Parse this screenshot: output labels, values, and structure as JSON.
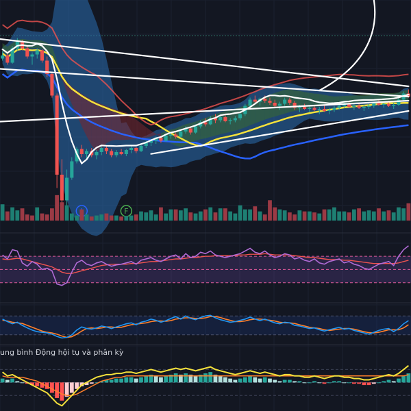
{
  "colors": {
    "background": "#131722",
    "up": "#26a69a",
    "down": "#ef5350",
    "up_volume": "#1e7f73",
    "down_volume": "#9b3a45",
    "ema_yellow": "#f5e13b",
    "ema_blue": "#2962ff",
    "ema_red": "#ef5350",
    "cloud_blue": "#2a6db0",
    "cloud_green": "#3b6b2e",
    "cloud_red": "#7a2630",
    "rsi_line": "#b06bd6",
    "rsi_ma": "#ef5350",
    "rsi_band": "#7e57c2",
    "stoch_k": "#2196f3",
    "stoch_d": "#ff7f2a",
    "macd_line": "#f5e13b",
    "macd_signal": "#ff7f2a",
    "drawing": "#ffffff",
    "marker_blue": "#2962ff",
    "marker_green": "#4caf50"
  },
  "markers": [
    {
      "label": "I",
      "color": "#2962ff",
      "index": 16
    },
    {
      "label": "F",
      "color": "#4caf50",
      "index": 25
    }
  ],
  "macd_pane_label": "ung bình Động hội tụ và phân kỳ",
  "chart_data": [
    {
      "type": "candlestick",
      "title": "",
      "candles": [
        [
          118,
          125,
          116,
          121
        ],
        [
          121,
          124,
          112,
          114
        ],
        [
          114,
          130,
          113,
          128
        ],
        [
          128,
          138,
          126,
          135
        ],
        [
          135,
          136,
          126,
          128
        ],
        [
          128,
          130,
          118,
          120
        ],
        [
          120,
          124,
          112,
          122
        ],
        [
          122,
          128,
          118,
          126
        ],
        [
          126,
          127,
          114,
          116
        ],
        [
          116,
          120,
          100,
          103
        ],
        [
          103,
          104,
          80,
          82
        ],
        [
          82,
          84,
          -8,
          5
        ],
        [
          5,
          20,
          -30,
          -20
        ],
        [
          -20,
          10,
          -25,
          2
        ],
        [
          2,
          22,
          0,
          18
        ],
        [
          18,
          32,
          16,
          30
        ],
        [
          30,
          34,
          22,
          25
        ],
        [
          25,
          30,
          20,
          28
        ],
        [
          28,
          31,
          22,
          24
        ],
        [
          24,
          29,
          20,
          27
        ],
        [
          27,
          33,
          24,
          31
        ],
        [
          31,
          33,
          25,
          28
        ],
        [
          28,
          30,
          22,
          24
        ],
        [
          24,
          29,
          22,
          27
        ],
        [
          27,
          30,
          24,
          25
        ],
        [
          25,
          30,
          23,
          29
        ],
        [
          29,
          33,
          26,
          31
        ],
        [
          31,
          32,
          26,
          28
        ],
        [
          28,
          34,
          27,
          33
        ],
        [
          33,
          38,
          31,
          36
        ],
        [
          36,
          40,
          33,
          38
        ],
        [
          38,
          42,
          35,
          41
        ],
        [
          41,
          43,
          36,
          38
        ],
        [
          38,
          44,
          37,
          43
        ],
        [
          43,
          46,
          40,
          44
        ],
        [
          44,
          46,
          40,
          42
        ],
        [
          42,
          48,
          41,
          47
        ],
        [
          47,
          52,
          45,
          50
        ],
        [
          50,
          52,
          44,
          46
        ],
        [
          46,
          54,
          45,
          52
        ],
        [
          52,
          58,
          50,
          56
        ],
        [
          56,
          60,
          52,
          54
        ],
        [
          54,
          62,
          53,
          60
        ],
        [
          60,
          64,
          55,
          58
        ],
        [
          58,
          63,
          56,
          61
        ],
        [
          61,
          63,
          56,
          57
        ],
        [
          57,
          60,
          54,
          58
        ],
        [
          58,
          62,
          56,
          60
        ],
        [
          60,
          66,
          58,
          64
        ],
        [
          64,
          74,
          62,
          72
        ],
        [
          72,
          80,
          70,
          78
        ],
        [
          78,
          82,
          74,
          76
        ],
        [
          76,
          80,
          72,
          79
        ],
        [
          79,
          82,
          75,
          77
        ],
        [
          77,
          80,
          73,
          75
        ],
        [
          75,
          78,
          70,
          72
        ],
        [
          72,
          76,
          68,
          74
        ],
        [
          74,
          80,
          72,
          78
        ],
        [
          78,
          80,
          73,
          75
        ],
        [
          75,
          77,
          68,
          70
        ],
        [
          70,
          73,
          66,
          71
        ],
        [
          71,
          74,
          68,
          69
        ],
        [
          69,
          72,
          66,
          70
        ],
        [
          70,
          73,
          67,
          68
        ],
        [
          68,
          71,
          64,
          69
        ],
        [
          69,
          72,
          66,
          67
        ],
        [
          67,
          70,
          64,
          68
        ],
        [
          68,
          72,
          66,
          70
        ],
        [
          70,
          74,
          68,
          72
        ],
        [
          72,
          76,
          70,
          74
        ],
        [
          74,
          76,
          70,
          71
        ],
        [
          71,
          74,
          68,
          72
        ],
        [
          72,
          75,
          69,
          70
        ],
        [
          70,
          73,
          67,
          71
        ],
        [
          71,
          74,
          69,
          72
        ],
        [
          72,
          76,
          70,
          75
        ],
        [
          75,
          78,
          72,
          73
        ],
        [
          73,
          76,
          70,
          74
        ],
        [
          74,
          77,
          71,
          72
        ],
        [
          72,
          75,
          69,
          73
        ],
        [
          73,
          80,
          72,
          78
        ],
        [
          78,
          86,
          77,
          84
        ],
        [
          84,
          88,
          80,
          81
        ]
      ],
      "ylim": [
        -45,
        175
      ]
    },
    {
      "type": "bar",
      "title": "",
      "values": [
        32,
        18,
        26,
        20,
        24,
        12,
        10,
        26,
        14,
        12,
        24,
        50,
        36,
        30,
        14,
        10,
        22,
        12,
        8,
        10,
        12,
        14,
        10,
        10,
        8,
        9,
        10,
        12,
        18,
        16,
        20,
        12,
        26,
        14,
        22,
        22,
        20,
        24,
        16,
        14,
        18,
        22,
        26,
        16,
        24,
        24,
        18,
        14,
        30,
        22,
        22,
        28,
        18,
        12,
        40,
        26,
        22,
        20,
        16,
        12,
        20,
        18,
        18,
        16,
        14,
        22,
        22,
        26,
        18,
        18,
        16,
        22,
        24,
        18,
        20,
        18,
        24,
        18,
        20,
        16,
        26,
        24,
        34
      ],
      "up": [
        1,
        0,
        1,
        1,
        0,
        0,
        0,
        1,
        0,
        0,
        0,
        0,
        0,
        1,
        1,
        1,
        0,
        1,
        0,
        1,
        1,
        0,
        0,
        1,
        0,
        1,
        1,
        0,
        1,
        1,
        1,
        1,
        0,
        1,
        1,
        0,
        1,
        1,
        0,
        1,
        1,
        0,
        1,
        0,
        1,
        0,
        1,
        1,
        1,
        1,
        1,
        0,
        1,
        0,
        0,
        0,
        1,
        1,
        0,
        0,
        1,
        0,
        1,
        0,
        1,
        0,
        1,
        1,
        1,
        1,
        0,
        1,
        0,
        1,
        1,
        1,
        0,
        1,
        0,
        1,
        1,
        1,
        0
      ],
      "ylim": [
        0,
        70
      ]
    },
    {
      "type": "line",
      "title": "",
      "series": [
        {
          "values": [
            72,
            66,
            80,
            78,
            60,
            55,
            62,
            58,
            50,
            52,
            48,
            28,
            26,
            30,
            46,
            60,
            64,
            58,
            56,
            60,
            62,
            58,
            55,
            57,
            58,
            60,
            62,
            58,
            64,
            66,
            68,
            64,
            62,
            66,
            70,
            72,
            66,
            74,
            68,
            70,
            76,
            74,
            78,
            72,
            70,
            68,
            70,
            72,
            74,
            78,
            82,
            76,
            74,
            78,
            72,
            68,
            70,
            74,
            72,
            66,
            68,
            64,
            62,
            66,
            60,
            58,
            62,
            64,
            66,
            60,
            62,
            58,
            56,
            52,
            50,
            54,
            58,
            60,
            62,
            56,
            70,
            80,
            86
          ]
        },
        {
          "values": [
            66,
            65,
            66,
            67,
            66,
            64,
            62,
            60,
            58,
            56,
            54,
            50,
            46,
            44,
            44,
            46,
            48,
            50,
            52,
            54,
            56,
            57,
            58,
            58,
            58,
            58,
            59,
            59,
            60,
            61,
            62,
            62,
            63,
            64,
            65,
            66,
            66,
            67,
            68,
            68,
            69,
            70,
            70,
            71,
            71,
            71,
            71,
            71,
            72,
            72,
            73,
            73,
            73,
            74,
            73,
            72,
            72,
            72,
            72,
            71,
            70,
            69,
            68,
            68,
            67,
            66,
            65,
            65,
            65,
            64,
            64,
            63,
            62,
            61,
            60,
            59,
            59,
            59,
            59,
            59,
            60,
            62,
            64
          ]
        }
      ],
      "ylim": [
        10,
        95
      ],
      "bands": [
        70,
        50,
        30
      ]
    },
    {
      "type": "line",
      "title": "",
      "series": [
        {
          "values": [
            70,
            62,
            55,
            60,
            50,
            42,
            35,
            30,
            28,
            26,
            22,
            15,
            10,
            12,
            20,
            35,
            45,
            40,
            38,
            42,
            48,
            45,
            40,
            45,
            50,
            55,
            58,
            52,
            60,
            64,
            70,
            66,
            60,
            65,
            72,
            78,
            70,
            80,
            72,
            68,
            75,
            80,
            82,
            74,
            68,
            64,
            60,
            62,
            66,
            70,
            76,
            70,
            65,
            70,
            64,
            58,
            55,
            60,
            58,
            50,
            48,
            44,
            40,
            42,
            36,
            32,
            36,
            40,
            44,
            38,
            40,
            34,
            30,
            26,
            22,
            28,
            34,
            38,
            40,
            30,
            40,
            55,
            65
          ]
        },
        {
          "values": [
            66,
            64,
            60,
            58,
            56,
            50,
            44,
            38,
            32,
            28,
            26,
            22,
            16,
            12,
            14,
            22,
            32,
            40,
            42,
            40,
            42,
            45,
            45,
            43,
            44,
            48,
            52,
            54,
            56,
            58,
            62,
            64,
            64,
            63,
            65,
            70,
            72,
            74,
            74,
            72,
            72,
            74,
            78,
            78,
            75,
            70,
            66,
            62,
            62,
            64,
            68,
            70,
            70,
            68,
            66,
            64,
            60,
            58,
            58,
            56,
            52,
            48,
            44,
            42,
            40,
            36,
            34,
            36,
            38,
            40,
            40,
            38,
            34,
            30,
            27,
            26,
            28,
            32,
            36,
            36,
            36,
            42,
            52
          ]
        }
      ],
      "ylim": [
        0,
        100
      ],
      "bands": [
        80,
        20
      ]
    },
    {
      "type": "bar",
      "title": "",
      "values": [
        3,
        2,
        3,
        1,
        0,
        -1,
        -2,
        -3,
        -4,
        -5,
        -8,
        -12,
        -14,
        -11,
        -8,
        -5,
        -3,
        -2,
        -1,
        0,
        1,
        2,
        2,
        3,
        3,
        4,
        4,
        3,
        4,
        5,
        6,
        5,
        4,
        5,
        6,
        7,
        6,
        7,
        6,
        5,
        6,
        7,
        8,
        6,
        5,
        4,
        3,
        2,
        3,
        4,
        5,
        4,
        3,
        4,
        3,
        2,
        1,
        2,
        2,
        1,
        1,
        0,
        0,
        1,
        0,
        -1,
        0,
        1,
        1,
        0,
        0,
        -1,
        -1,
        -2,
        -2,
        -1,
        0,
        1,
        2,
        1,
        3,
        5,
        7
      ],
      "series": [
        {
          "name": "",
          "values": [
            8,
            5,
            6,
            4,
            2,
            0,
            -2,
            -4,
            -6,
            -8,
            -12,
            -16,
            -18,
            -14,
            -10,
            -6,
            -2,
            0,
            2,
            4,
            5,
            6,
            6,
            7,
            7,
            8,
            8,
            7,
            8,
            9,
            10,
            9,
            8,
            9,
            10,
            11,
            10,
            11,
            10,
            9,
            10,
            11,
            12,
            10,
            9,
            8,
            7,
            6,
            7,
            8,
            9,
            8,
            7,
            8,
            7,
            6,
            5,
            6,
            6,
            5,
            5,
            4,
            4,
            5,
            4,
            3,
            4,
            5,
            5,
            4,
            4,
            3,
            3,
            2,
            2,
            3,
            4,
            5,
            6,
            5,
            7,
            10,
            13
          ]
        },
        {
          "name": "",
          "values": [
            5,
            4,
            4,
            4,
            4,
            3,
            2,
            1,
            -1,
            -3,
            -5,
            -7,
            -9,
            -10,
            -10,
            -9,
            -7,
            -5,
            -3,
            -1,
            1,
            2,
            3,
            4,
            4,
            5,
            5,
            5,
            5,
            5,
            5,
            5,
            5,
            5,
            5,
            5,
            5,
            5,
            5,
            5,
            5,
            5,
            5,
            5,
            5,
            5,
            5,
            5,
            5,
            5,
            5,
            5,
            5,
            5,
            5,
            5,
            5,
            5,
            5,
            5,
            5,
            5,
            5,
            5,
            5,
            5,
            5,
            5,
            5,
            5,
            5,
            5,
            5,
            5,
            5,
            5,
            5,
            5,
            5,
            5,
            5,
            5,
            6
          ]
        }
      ],
      "ylim": [
        -22,
        16
      ]
    }
  ]
}
